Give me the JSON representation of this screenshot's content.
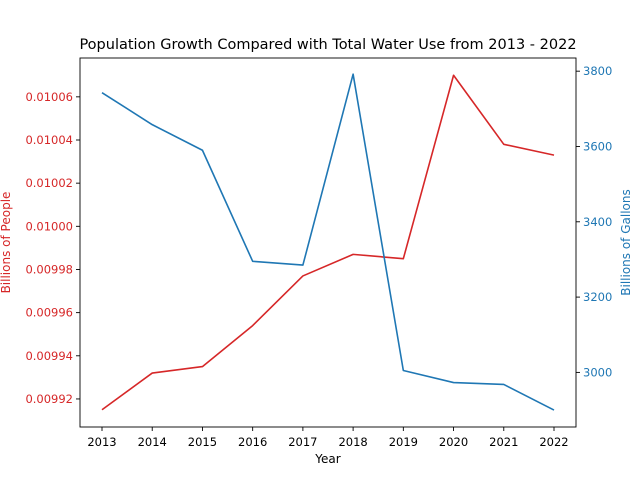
{
  "chart_data": {
    "type": "line",
    "title": "Population Growth Compared with Total Water Use from 2013 - 2022",
    "xlabel": "Year",
    "categories": [
      "2013",
      "2014",
      "2015",
      "2016",
      "2017",
      "2018",
      "2019",
      "2020",
      "2021",
      "2022"
    ],
    "x": [
      2013,
      2014,
      2015,
      2016,
      2017,
      2018,
      2019,
      2020,
      2021,
      2022
    ],
    "y_left": {
      "label": "Billions of People",
      "color": "#d62728",
      "ylim": [
        0.009907,
        0.010078
      ],
      "ticks": [
        0.00992,
        0.00994,
        0.00996,
        0.00998,
        0.01,
        0.01002,
        0.01004,
        0.01006
      ],
      "tick_labels": [
        "0.00992",
        "0.00994",
        "0.00996",
        "0.00998",
        "0.01000",
        "0.01002",
        "0.01004",
        "0.01006"
      ]
    },
    "y_right": {
      "label": "Billions of Gallons",
      "color": "#1f77b4",
      "ylim": [
        2855,
        3835
      ],
      "ticks": [
        3000,
        3200,
        3400,
        3600,
        3800
      ],
      "tick_labels": [
        "3000",
        "3200",
        "3400",
        "3600",
        "3800"
      ]
    },
    "series": [
      {
        "axis": "left",
        "color": "#d62728",
        "values": [
          0.009915,
          0.009932,
          0.009935,
          0.009954,
          0.009977,
          0.009987,
          0.009985,
          0.01007,
          0.010038,
          0.010033
        ]
      },
      {
        "axis": "right",
        "color": "#1f77b4",
        "values": [
          3743,
          3658,
          3590,
          3295,
          3285,
          3792,
          3005,
          2973,
          2968,
          2900
        ]
      }
    ],
    "grid": false,
    "legend": "none"
  }
}
